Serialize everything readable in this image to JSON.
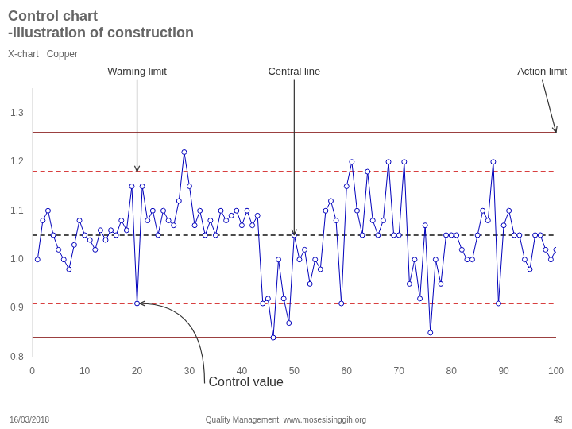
{
  "chart_data": {
    "type": "line",
    "title": [
      "Control chart",
      "-illustration of construction"
    ],
    "subtitle": "X-chart   Copper",
    "x": [
      1,
      2,
      3,
      4,
      5,
      6,
      7,
      8,
      9,
      10,
      11,
      12,
      13,
      14,
      15,
      16,
      17,
      18,
      19,
      20,
      21,
      22,
      23,
      24,
      25,
      26,
      27,
      28,
      29,
      30,
      31,
      32,
      33,
      34,
      35,
      36,
      37,
      38,
      39,
      40,
      41,
      42,
      43,
      44,
      45,
      46,
      47,
      48,
      49,
      50,
      51,
      52,
      53,
      54,
      55,
      56,
      57,
      58,
      59,
      60,
      61,
      62,
      63,
      64,
      65,
      66,
      67,
      68,
      69,
      70,
      71,
      72,
      73,
      74,
      75,
      76,
      77,
      78,
      79,
      80,
      81,
      82,
      83,
      84,
      85,
      86,
      87,
      88,
      89,
      90,
      91,
      92,
      93,
      94,
      95,
      96,
      97,
      98,
      99,
      100
    ],
    "values": [
      1.0,
      1.08,
      1.1,
      1.05,
      1.02,
      1.0,
      0.98,
      1.03,
      1.08,
      1.05,
      1.04,
      1.02,
      1.06,
      1.04,
      1.06,
      1.05,
      1.08,
      1.06,
      1.15,
      0.91,
      1.15,
      1.08,
      1.1,
      1.05,
      1.1,
      1.08,
      1.07,
      1.12,
      1.22,
      1.15,
      1.07,
      1.1,
      1.05,
      1.08,
      1.05,
      1.1,
      1.08,
      1.09,
      1.1,
      1.07,
      1.1,
      1.07,
      1.09,
      0.91,
      0.92,
      0.84,
      1.0,
      0.92,
      0.87,
      1.05,
      1.0,
      1.02,
      0.95,
      1.0,
      0.98,
      1.1,
      1.12,
      1.08,
      0.91,
      1.15,
      1.2,
      1.1,
      1.05,
      1.18,
      1.08,
      1.05,
      1.08,
      1.2,
      1.05,
      1.05,
      1.2,
      0.95,
      1.0,
      0.92,
      1.07,
      0.85,
      1.0,
      0.95,
      1.05,
      1.05,
      1.05,
      1.02,
      1.0,
      1.0,
      1.05,
      1.1,
      1.08,
      1.2,
      0.91,
      1.07,
      1.1,
      1.05,
      1.05,
      1.0,
      0.98,
      1.05,
      1.05,
      1.02,
      1.0,
      1.02
    ],
    "color": "#0000bb",
    "marker": "circle",
    "hlines": [
      {
        "value": 1.26,
        "color": "#7a0000",
        "line_style": "solid"
      },
      {
        "value": 0.84,
        "color": "#7a0000",
        "line_style": "solid"
      },
      {
        "value": 1.18,
        "color": "#cc0000",
        "line_style": "dashed"
      },
      {
        "value": 0.91,
        "color": "#cc0000",
        "line_style": "dashed"
      },
      {
        "value": 1.05,
        "color": "#111111",
        "line_style": "dashed"
      }
    ],
    "annotations": [
      {
        "text": "Central line",
        "x": 50,
        "y": 1.05
      },
      {
        "text": "Warning limit",
        "x": 20,
        "y": 1.18
      },
      {
        "text": "Action limit",
        "x": 100,
        "y": 1.26
      },
      {
        "text": "Control value",
        "x": 20,
        "y": 0.91
      }
    ],
    "footer": [
      "16/03/2018",
      "Quality Management, www.mosesisinggih.org",
      "49"
    ],
    "xlim": [
      0,
      100
    ],
    "ylim": [
      0.8,
      1.35
    ],
    "xticks": [
      0,
      10,
      20,
      30,
      40,
      50,
      60,
      70,
      80,
      90,
      100
    ],
    "yticks": [
      0.8,
      0.9,
      {
        "value": 1.0,
        "label": "1.0"
      },
      1.1,
      1.2,
      1.3
    ],
    "grid": false,
    "legend": false
  }
}
